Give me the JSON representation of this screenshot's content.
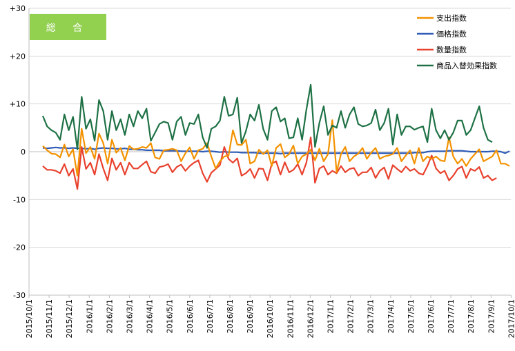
{
  "chart_data": {
    "type": "line",
    "badge_label": "総 合",
    "badge_color": "#92D050",
    "ylim": [
      -30,
      30
    ],
    "y_ticks": [
      {
        "value": 30,
        "label": "+30"
      },
      {
        "value": 20,
        "label": "+20"
      },
      {
        "value": 10,
        "label": "+10"
      },
      {
        "value": 0,
        "label": "0"
      },
      {
        "value": -10,
        "label": "-10"
      },
      {
        "value": -20,
        "label": "-20"
      },
      {
        "value": -30,
        "label": "-30"
      }
    ],
    "x_tick_labels": [
      "2015/10/1",
      "2015/11/1",
      "2015/12/1",
      "2016/1/1",
      "2016/2/1",
      "2016/3/1",
      "2016/4/1",
      "2016/5/1",
      "2016/6/1",
      "2016/7/1",
      "2016/8/1",
      "2016/9/1",
      "2016/10/1",
      "2016/11/1",
      "2016/12/1",
      "2017/1/1",
      "2017/2/1",
      "2017/3/1",
      "2017/4/1",
      "2017/5/1",
      "2017/6/1",
      "2017/7/1",
      "2017/8/1",
      "2017/9/1",
      "2017/10/1"
    ],
    "grid": true,
    "legend_position": "top-right",
    "series": [
      {
        "name": "支出指数",
        "color": "#F39200",
        "values": [
          1.2,
          0.3,
          -0.4,
          -0.5,
          -1.2,
          1.5,
          -1.0,
          0.5,
          -5.0,
          4.8,
          -0.3,
          1.0,
          -1.5,
          3.8,
          1.8,
          -2.5,
          2.5,
          -0.2,
          0.8,
          -1.8,
          1.2,
          0.5,
          0.6,
          1.0,
          0.8,
          1.8,
          -1.2,
          -1.5,
          0.3,
          0.4,
          0.6,
          0.3,
          -2.0,
          -0.3,
          0.9,
          -1.5,
          0.3,
          0.6,
          1.8,
          -1.0,
          -3.5,
          -2.0,
          -1.0,
          -0.8,
          4.5,
          1.5,
          1.4,
          2.5,
          -2.5,
          -2.0,
          0.4,
          -0.5,
          0.3,
          -3.0,
          0.8,
          1.6,
          -1.2,
          -0.5,
          1.3,
          -2.5,
          -1.0,
          -0.5,
          0.4,
          -1.8,
          0.6,
          -2.0,
          -0.5,
          6.6,
          -4.3,
          -0.5,
          1.0,
          -2.0,
          -1.0,
          -0.4,
          0.8,
          -1.5,
          -0.2,
          0.8,
          -1.5,
          -1.0,
          -0.8,
          -0.5,
          0.8,
          -2.0,
          -0.8,
          0.3,
          -2.5,
          0.8,
          -2.0,
          -1.0,
          -1.5,
          -1.0,
          -1.8,
          -2.0,
          3.0,
          -1.0,
          -2.5,
          -1.5,
          -3.0,
          -1.5,
          -0.5,
          0.5,
          -2.0,
          -1.5,
          -1.0,
          0.3,
          -2.5,
          -2.5,
          -3.0
        ]
      },
      {
        "name": "価格指数",
        "color": "#2E5CB8",
        "values": [
          0.8,
          0.7,
          0.8,
          0.9,
          0.8,
          0.8,
          0.7,
          0.8,
          0.7,
          0.7,
          0.6,
          0.7,
          0.5,
          0.7,
          0.8,
          0.7,
          0.7,
          0.6,
          0.6,
          0.7,
          0.5,
          0.5,
          0.4,
          0.4,
          0.3,
          0.3,
          0.3,
          0.3,
          0.2,
          0.2,
          0.2,
          0.2,
          0.1,
          0.1,
          0.1,
          0.1,
          0.1,
          0.0,
          0.1,
          0.1,
          0.0,
          -0.1,
          0.0,
          -0.1,
          -0.1,
          -0.1,
          -0.2,
          -0.2,
          -0.2,
          -0.2,
          -0.3,
          -0.3,
          -0.3,
          -0.3,
          -0.3,
          -0.4,
          -0.3,
          -0.3,
          -0.3,
          -0.3,
          -0.3,
          -0.3,
          -0.3,
          -0.3,
          -0.3,
          -0.3,
          -0.3,
          -0.3,
          -0.3,
          -0.3,
          -0.3,
          -0.3,
          -0.3,
          -0.3,
          -0.3,
          -0.3,
          -0.3,
          -0.3,
          -0.3,
          -0.3,
          -0.3,
          -0.3,
          -0.3,
          -0.3,
          -0.3,
          -0.3,
          -0.2,
          -0.2,
          -0.2,
          0.0,
          0.1,
          0.1,
          0.1,
          0.1,
          0.2,
          0.2,
          0.2,
          0.2,
          0.1,
          0.0,
          0.0,
          0.0,
          0.0,
          0.0,
          0.1,
          0.1,
          0.0,
          -0.3,
          0.1
        ]
      },
      {
        "name": "数量指数",
        "color": "#E8412D",
        "values": [
          -3.0,
          -3.8,
          -3.8,
          -4.0,
          -4.5,
          -2.6,
          -5.0,
          -3.6,
          -7.8,
          1.0,
          -3.6,
          -2.3,
          -4.8,
          -0.5,
          -3.5,
          -6.0,
          -1.4,
          -3.8,
          -2.3,
          -4.8,
          -2.3,
          -3.5,
          -3.5,
          -2.7,
          -2.0,
          -4.2,
          -4.5,
          -3.2,
          -3.0,
          -2.6,
          -4.3,
          -3.2,
          -2.7,
          -4.0,
          -3.0,
          -2.3,
          -1.8,
          -4.5,
          -6.3,
          -4.4,
          -3.6,
          -2.8,
          1.0,
          -1.5,
          -2.3,
          -1.4,
          -5.0,
          -4.5,
          -3.6,
          -5.5,
          -3.5,
          -3.6,
          -6.0,
          -2.5,
          -2.0,
          -4.8,
          -2.2,
          -4.3,
          -3.8,
          -2.6,
          -4.8,
          -2.3,
          3.0,
          -6.5,
          -3.5,
          -3.0,
          -4.8,
          -4.0,
          -4.5,
          -3.0,
          -4.3,
          -3.6,
          -3.4,
          -5.0,
          -4.3,
          -4.3,
          -3.3,
          -5.5,
          -4.0,
          -3.3,
          -5.7,
          -2.8,
          -3.6,
          -4.3,
          -3.1,
          -4.0,
          -3.6,
          -4.5,
          -4.8,
          -3.0,
          -0.8,
          -3.5,
          -4.5,
          -4.0,
          -6.0,
          -5.0,
          -3.6,
          -3.1,
          -5.5,
          -3.6,
          -4.0,
          -3.2,
          -5.5,
          -5.0,
          -6.0,
          -5.5
        ]
      },
      {
        "name": "商品入替効果指数",
        "color": "#1E7145",
        "values": [
          7.5,
          5.3,
          4.5,
          4.0,
          2.5,
          7.8,
          4.5,
          7.3,
          0.5,
          11.5,
          4.8,
          6.8,
          2.3,
          10.8,
          8.5,
          2.5,
          8.5,
          4.5,
          6.8,
          3.5,
          7.8,
          5.3,
          8.5,
          7.0,
          9.0,
          2.3,
          4.0,
          5.8,
          6.3,
          6.0,
          2.5,
          6.3,
          7.3,
          3.5,
          6.0,
          5.8,
          7.8,
          3.0,
          0.8,
          4.8,
          5.3,
          6.5,
          11.5,
          7.5,
          7.8,
          11.3,
          1.8,
          4.3,
          7.8,
          6.5,
          9.8,
          4.8,
          2.5,
          8.5,
          9.3,
          6.3,
          7.0,
          2.8,
          3.0,
          7.0,
          2.5,
          8.8,
          14.0,
          1.0,
          6.0,
          9.5,
          3.5,
          5.5,
          5.0,
          8.5,
          5.0,
          7.8,
          9.3,
          5.8,
          5.3,
          5.5,
          6.0,
          8.8,
          4.5,
          6.0,
          9.0,
          1.5,
          7.8,
          3.5,
          5.3,
          5.3,
          4.6,
          5.0,
          5.3,
          2.0,
          9.0,
          4.5,
          2.8,
          4.5,
          2.5,
          4.0,
          6.5,
          6.5,
          3.5,
          4.5,
          7.0,
          9.5,
          5.0,
          2.5,
          2.0
        ]
      }
    ]
  }
}
